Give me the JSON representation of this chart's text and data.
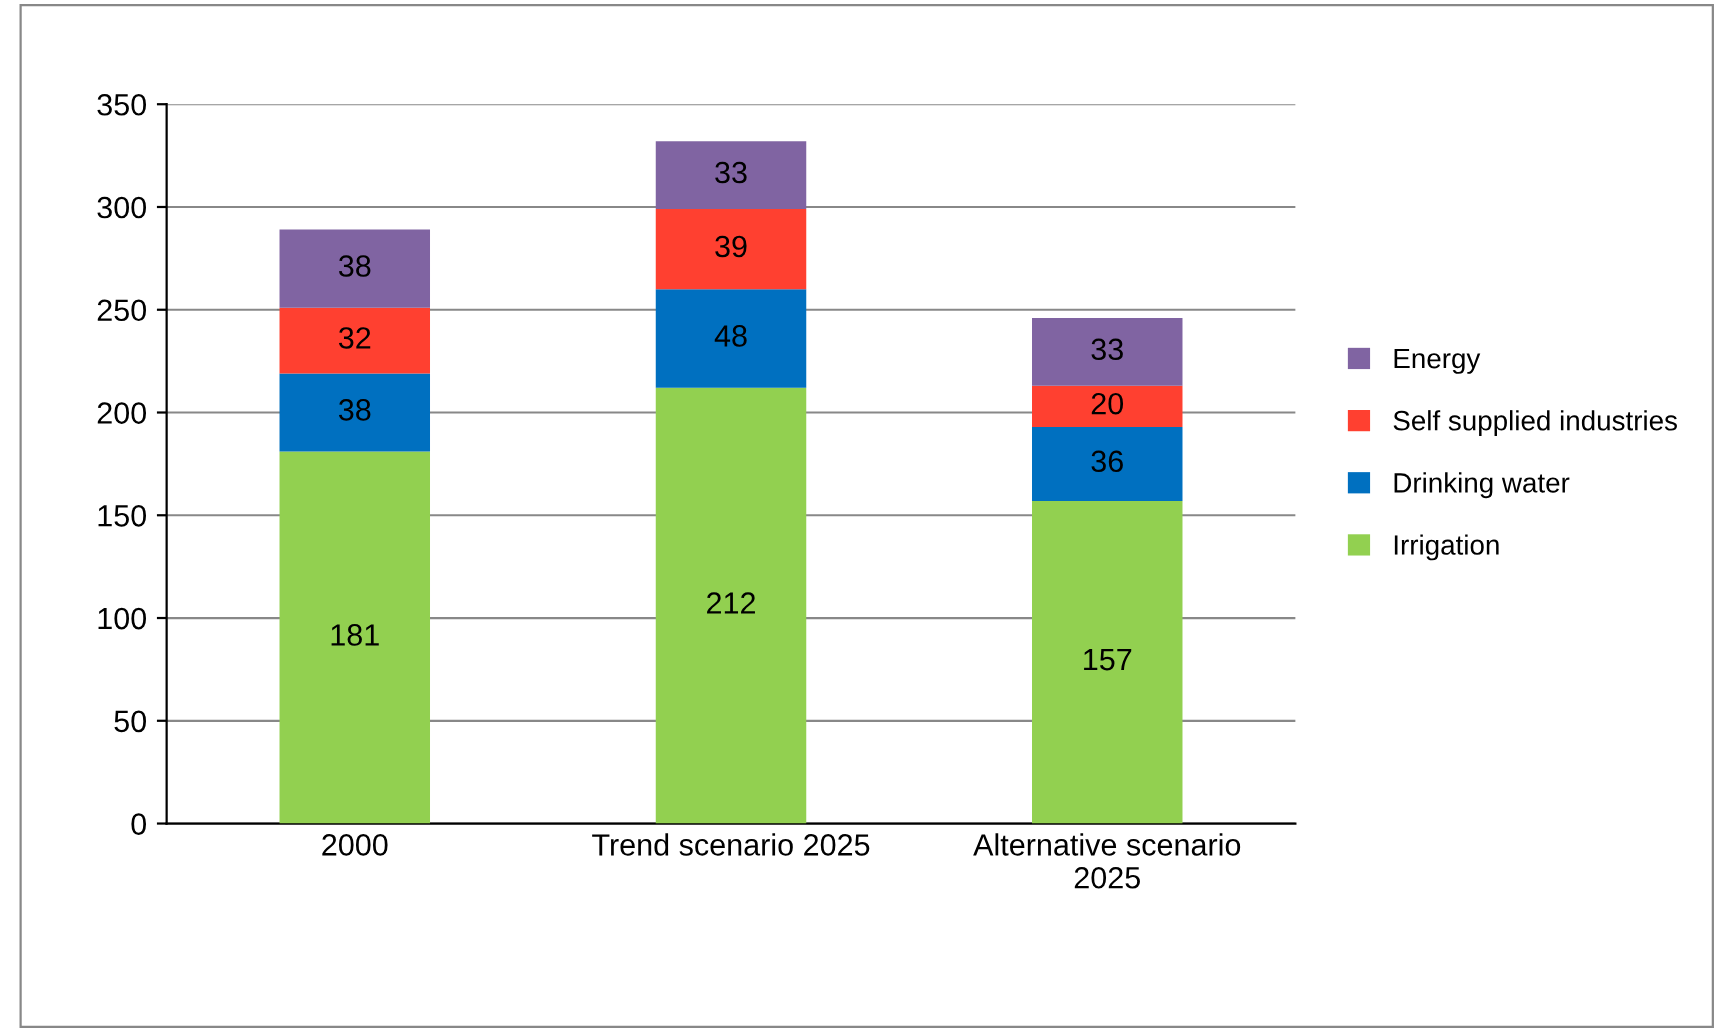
{
  "chart_data": {
    "type": "bar",
    "stacked": true,
    "categories": [
      "2000",
      "Trend scenario 2025",
      "Alternative scenario\n2025"
    ],
    "series": [
      {
        "name": "Irrigation",
        "color": "#92d050",
        "values": [
          181,
          212,
          157
        ]
      },
      {
        "name": "Drinking water",
        "color": "#0070c0",
        "values": [
          38,
          48,
          36
        ]
      },
      {
        "name": "Self supplied industries",
        "color": "#ff4030",
        "values": [
          32,
          39,
          20
        ]
      },
      {
        "name": "Energy",
        "color": "#8064a2",
        "values": [
          38,
          33,
          33
        ]
      }
    ],
    "ylim": [
      0,
      350
    ],
    "yticks": [
      0,
      50,
      100,
      150,
      200,
      250,
      300,
      350
    ],
    "grid": "y",
    "legend": "right",
    "data_labels": true
  }
}
